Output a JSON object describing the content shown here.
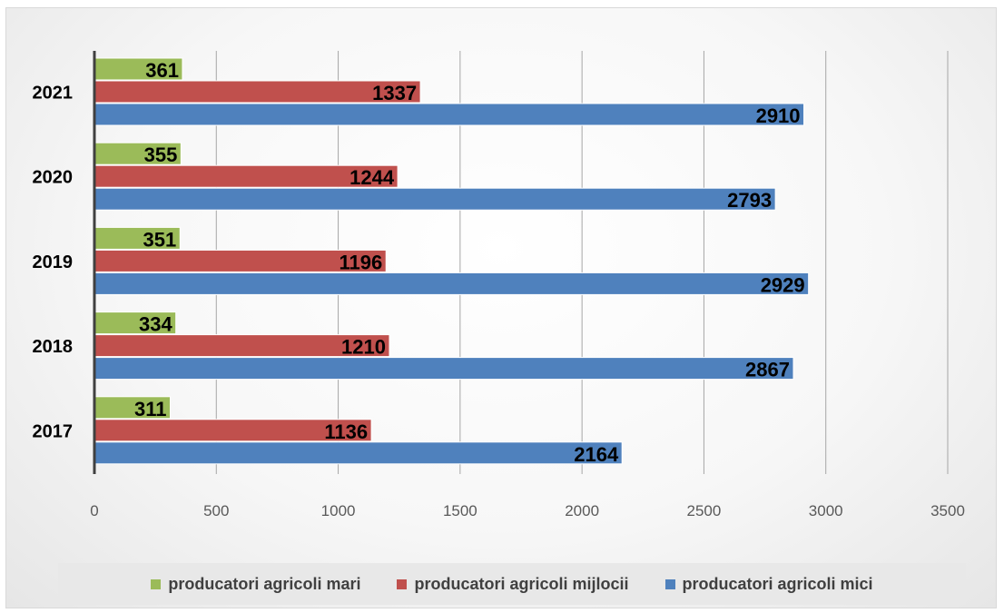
{
  "chart_data": {
    "type": "bar",
    "orientation": "horizontal",
    "categories": [
      "2017",
      "2018",
      "2019",
      "2020",
      "2021"
    ],
    "series": [
      {
        "name": "producatori agricoli mari",
        "color": "#9bbb59",
        "values": [
          311,
          334,
          351,
          355,
          361
        ]
      },
      {
        "name": "producatori agricoli mijlocii",
        "color": "#c0504d",
        "values": [
          1136,
          1210,
          1196,
          1244,
          1337
        ]
      },
      {
        "name": "producatori agricoli mici",
        "color": "#4f81bd",
        "values": [
          2164,
          2867,
          2929,
          2793,
          2910
        ]
      }
    ],
    "xlim": [
      0,
      3500
    ],
    "xticks": [
      0,
      500,
      1000,
      1500,
      2000,
      2500,
      3000,
      3500
    ],
    "grid": true,
    "legend_position": "bottom",
    "data_labels": true,
    "title": "",
    "xlabel": "",
    "ylabel": ""
  }
}
